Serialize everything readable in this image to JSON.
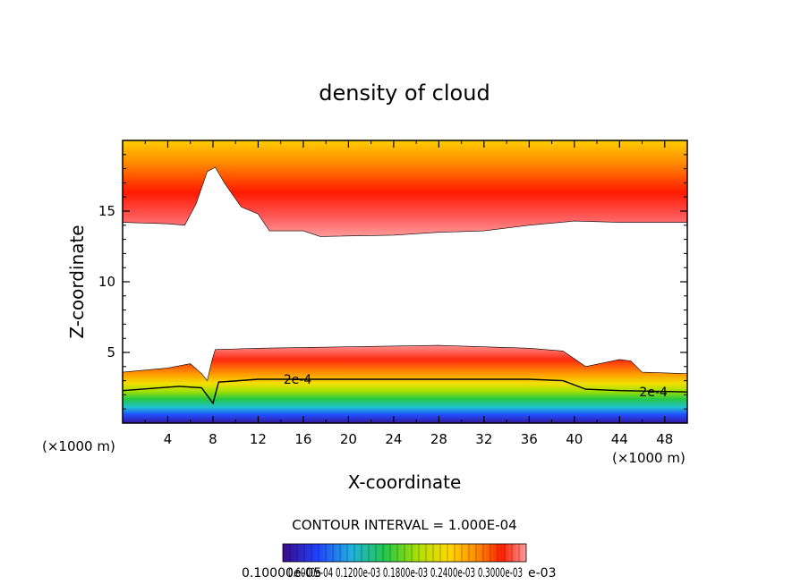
{
  "chart_data": {
    "type": "heatmap",
    "title": "density of cloud",
    "xlabel": "X-coordinate",
    "ylabel": "Z-coordinate",
    "x_unit_left": "(×1000 m)",
    "x_unit_right": "(×1000 m)",
    "xlim": [
      0,
      50
    ],
    "ylim": [
      0,
      20
    ],
    "x_ticks": [
      4,
      8,
      12,
      16,
      20,
      24,
      28,
      32,
      36,
      40,
      44,
      48
    ],
    "y_ticks": [
      5,
      10,
      15
    ],
    "contour_interval_text": "CONTOUR INTERVAL = 1.000E-04",
    "contour_labels": [
      {
        "text": "2e-4",
        "x": 15.5,
        "z": 3.1
      },
      {
        "text": "2e-4",
        "x": 47.0,
        "z": 2.2
      }
    ],
    "colorbar_labels_text": "0.10000e-05",
    "colorbar_labels_overlap": "0.6000e-04 0.1200e-03 0.1800e-03 0.2400e-03 0.3000e-03",
    "colorbar_max_text": "e-03",
    "colorbar_min": 1e-06,
    "colorbar_max": 0.00033,
    "colors": {
      "low": "#3a0a8a",
      "mid": "#22c84a",
      "high": "#ff0000",
      "peak_edge": "#ffd000"
    },
    "upper_layer": {
      "description_value_range": [
        1e-05,
        0.00033
      ],
      "core_z": 16.2,
      "top_z": 19.8,
      "bottom_profile": [
        [
          0,
          14.2
        ],
        [
          4,
          14.1
        ],
        [
          5.5,
          14.0
        ],
        [
          6.5,
          15.5
        ],
        [
          7.5,
          17.8
        ],
        [
          8.2,
          18.1
        ],
        [
          9,
          17.0
        ],
        [
          10.5,
          15.3
        ],
        [
          12,
          14.8
        ],
        [
          13,
          13.6
        ],
        [
          16,
          13.6
        ],
        [
          17.5,
          13.2
        ],
        [
          24,
          13.3
        ],
        [
          28,
          13.5
        ],
        [
          32,
          13.6
        ],
        [
          36,
          14.0
        ],
        [
          40,
          14.3
        ],
        [
          44,
          14.2
        ],
        [
          50,
          14.2
        ]
      ]
    },
    "lower_layer": {
      "top_profile": [
        [
          0,
          3.6
        ],
        [
          4,
          3.9
        ],
        [
          6,
          4.2
        ],
        [
          7,
          3.5
        ],
        [
          7.5,
          3.0
        ],
        [
          7.9,
          4.4
        ],
        [
          8.2,
          5.2
        ],
        [
          12,
          5.3
        ],
        [
          20,
          5.4
        ],
        [
          28,
          5.5
        ],
        [
          36,
          5.3
        ],
        [
          39,
          5.1
        ],
        [
          41,
          4.0
        ],
        [
          44,
          4.5
        ],
        [
          45,
          4.4
        ],
        [
          46,
          3.6
        ],
        [
          50,
          3.5
        ]
      ],
      "contour_2e4": [
        [
          0,
          2.3
        ],
        [
          5,
          2.6
        ],
        [
          7,
          2.5
        ],
        [
          8,
          1.4
        ],
        [
          8.5,
          2.9
        ],
        [
          12,
          3.1
        ],
        [
          20,
          3.1
        ],
        [
          28,
          3.1
        ],
        [
          36,
          3.1
        ],
        [
          39,
          3.0
        ],
        [
          41,
          2.4
        ],
        [
          44,
          2.3
        ],
        [
          50,
          2.2
        ]
      ]
    }
  }
}
